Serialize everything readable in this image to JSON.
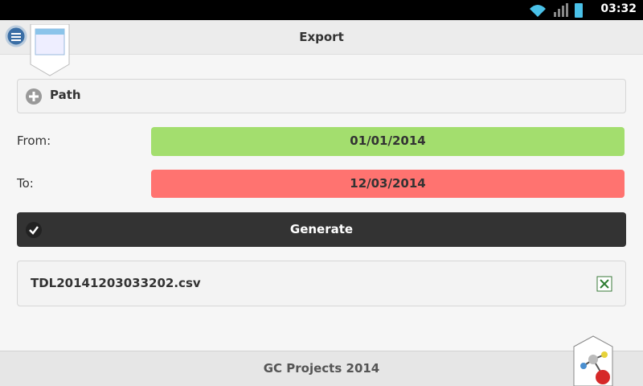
{
  "status_bar": {
    "time": "03:32"
  },
  "header": {
    "title": "Export"
  },
  "path": {
    "label": "Path"
  },
  "from": {
    "label": "From:",
    "date": "01/01/2014"
  },
  "to": {
    "label": "To:",
    "date": "12/03/2014"
  },
  "generate": {
    "label": "Generate"
  },
  "file": {
    "name": "TDL20141203033202.csv"
  },
  "footer": {
    "text": "GC Projects 2014"
  }
}
